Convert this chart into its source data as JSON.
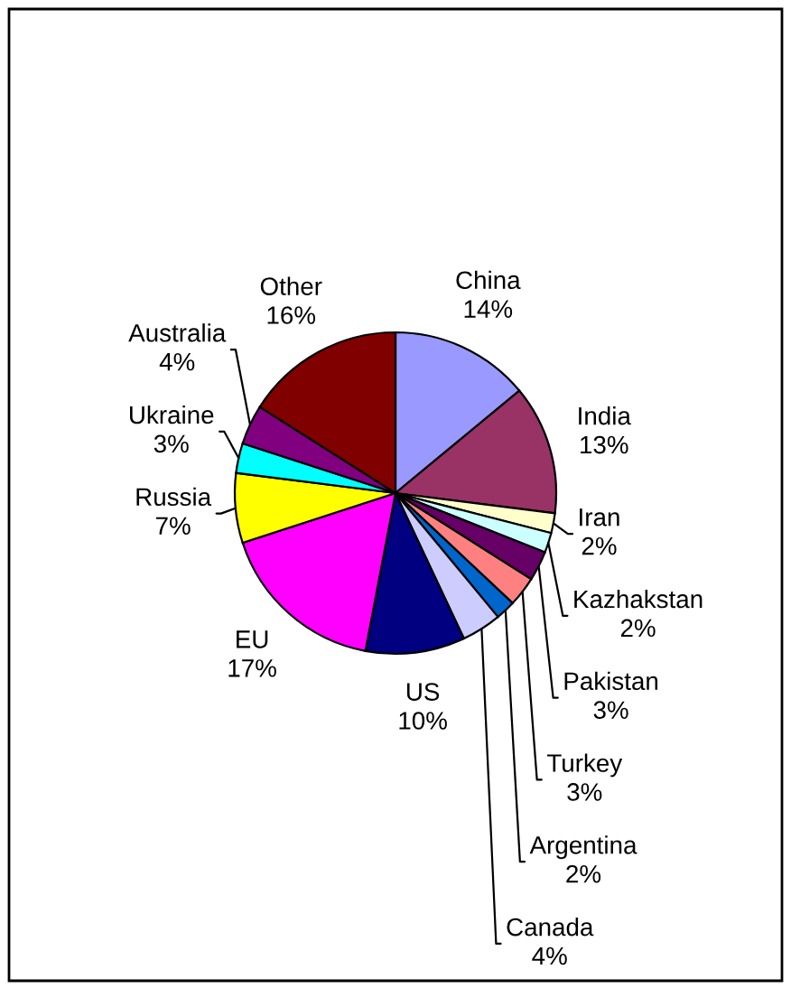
{
  "chart_data": {
    "type": "pie",
    "categories": [
      "China",
      "India",
      "Iran",
      "Kazhakstan",
      "Pakistan",
      "Turkey",
      "Argentina",
      "Canada",
      "US",
      "EU",
      "Russia",
      "Ukraine",
      "Australia",
      "Other"
    ],
    "values": [
      14,
      13,
      2,
      2,
      3,
      3,
      2,
      4,
      10,
      17,
      7,
      3,
      4,
      16
    ],
    "value_labels": [
      "14%",
      "13%",
      "2%",
      "2%",
      "3%",
      "3%",
      "2%",
      "4%",
      "10%",
      "17%",
      "7%",
      "3%",
      "4%",
      "16%"
    ],
    "colors": [
      "#9999ff",
      "#993366",
      "#ffffcc",
      "#ccffff",
      "#660066",
      "#ff8080",
      "#0066cc",
      "#ccccff",
      "#000080",
      "#ff00ff",
      "#ffff00",
      "#00ffff",
      "#800080",
      "#800000"
    ]
  }
}
